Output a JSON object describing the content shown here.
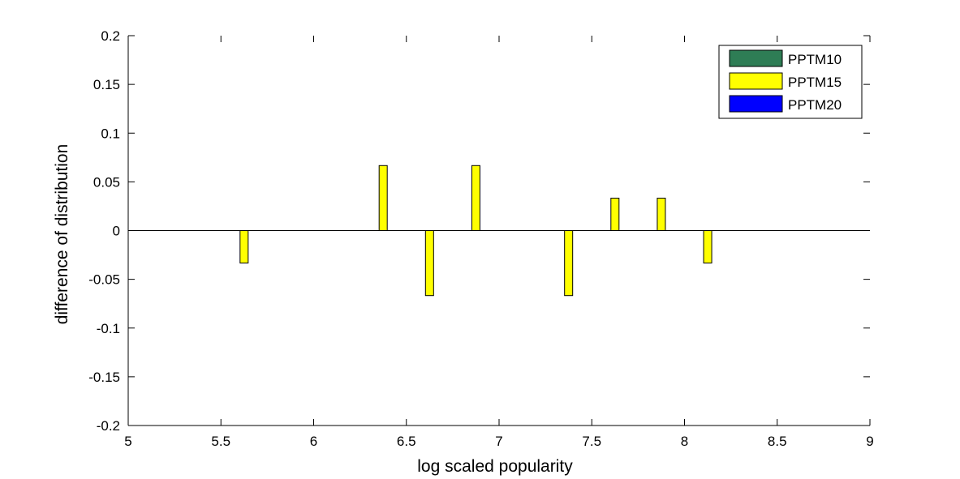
{
  "chart_data": {
    "type": "bar",
    "title": "",
    "xlabel": "log scaled popularity",
    "ylabel": "difference of distribution",
    "xlim": [
      5,
      9
    ],
    "ylim": [
      -0.2,
      0.2
    ],
    "x_ticks": [
      5,
      5.5,
      6,
      6.5,
      7,
      7.5,
      8,
      8.5,
      9
    ],
    "x_tick_labels": [
      "5",
      "5.5",
      "6",
      "6.5",
      "7",
      "7.5",
      "8",
      "8.5",
      "9"
    ],
    "y_ticks": [
      -0.2,
      -0.15,
      -0.1,
      -0.05,
      0,
      0.05,
      0.1,
      0.15,
      0.2
    ],
    "y_tick_labels": [
      "-0.2",
      "-0.15",
      "-0.1",
      "-0.05",
      "0",
      "0.05",
      "0.1",
      "0.15",
      "0.2"
    ],
    "grid": false,
    "legend_position": "top-right",
    "series": [
      {
        "name": "PPTM10",
        "color": "#2e7d55",
        "points": []
      },
      {
        "name": "PPTM15",
        "color": "#ffff00",
        "points": [
          {
            "x": 5.625,
            "y": -0.0333
          },
          {
            "x": 6.375,
            "y": 0.0667
          },
          {
            "x": 6.625,
            "y": -0.0667
          },
          {
            "x": 6.875,
            "y": 0.0667
          },
          {
            "x": 7.375,
            "y": -0.0667
          },
          {
            "x": 7.625,
            "y": 0.0333
          },
          {
            "x": 7.875,
            "y": 0.0333
          },
          {
            "x": 8.125,
            "y": -0.0333
          }
        ]
      },
      {
        "name": "PPTM20",
        "color": "#0000ff",
        "points": []
      }
    ]
  }
}
